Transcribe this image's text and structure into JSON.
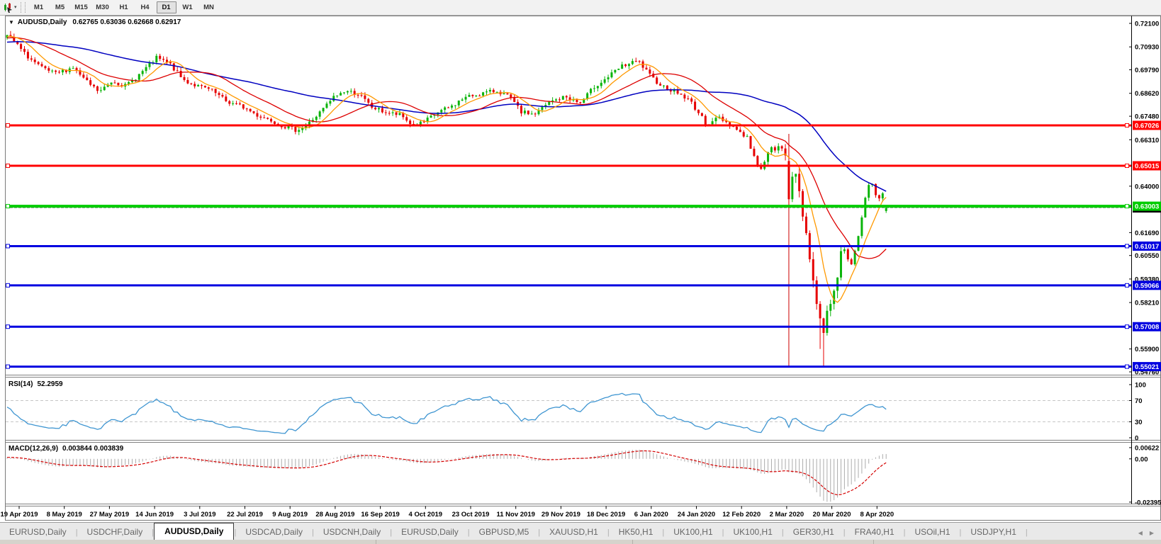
{
  "toolbar": {
    "timeframes": [
      "M1",
      "M5",
      "M15",
      "M30",
      "H1",
      "H4",
      "D1",
      "W1",
      "MN"
    ],
    "active_timeframe": "D1"
  },
  "chart_data": {
    "type": "candlestick",
    "symbol": "AUDUSD",
    "timeframe": "Daily",
    "title": "AUDUSD,Daily",
    "ohlc_text": "0.62765 0.63036 0.62668 0.62917",
    "open": 0.62765,
    "high": 0.63036,
    "low": 0.62668,
    "close": 0.62917,
    "current_bid": 0.62917,
    "y_axis_ticks": [
      0.721,
      0.7093,
      0.6979,
      0.6862,
      0.6748,
      0.6631,
      0.64,
      0.6169,
      0.6055,
      0.5938,
      0.5821,
      0.559,
      0.5476
    ],
    "y_axis_top": 0.721,
    "y_axis_bottom": 0.5476,
    "x_axis_dates": [
      "19 Apr 2019",
      "8 May 2019",
      "27 May 2019",
      "14 Jun 2019",
      "3 Jul 2019",
      "22 Jul 2019",
      "9 Aug 2019",
      "28 Aug 2019",
      "16 Sep 2019",
      "4 Oct 2019",
      "23 Oct 2019",
      "11 Nov 2019",
      "29 Nov 2019",
      "18 Dec 2019",
      "6 Jan 2020",
      "24 Jan 2020",
      "12 Feb 2020",
      "2 Mar 2020",
      "20 Mar 2020",
      "8 Apr 2020"
    ],
    "horizontal_lines": [
      {
        "price": 0.67026,
        "color": "#FF0000",
        "width": 3
      },
      {
        "price": 0.65015,
        "color": "#FF0000",
        "width": 3
      },
      {
        "price": 0.63003,
        "color": "#00CC00",
        "width": 4
      },
      {
        "price": 0.61017,
        "color": "#0000E0",
        "width": 3
      },
      {
        "price": 0.59066,
        "color": "#0000E0",
        "width": 3
      },
      {
        "price": 0.57008,
        "color": "#0000E0",
        "width": 3
      },
      {
        "price": 0.55021,
        "color": "#0000E0",
        "width": 3
      }
    ],
    "vertical_line": {
      "x_fraction": 0.888,
      "from_price": 0.666,
      "to_price": 0.5503,
      "color": "#CC0000"
    },
    "spike_low": {
      "x_fraction": 0.93,
      "price": 0.5506
    },
    "spike_high": {
      "x_fraction": 0.004,
      "price": 0.7172
    },
    "candle_up_color": "#0AB40A",
    "candle_down_color": "#E60000",
    "bid_line_color": "#A9A9A9",
    "moving_averages": [
      {
        "period": 8,
        "color": "#FF9900"
      },
      {
        "period": 21,
        "color": "#DD0000"
      },
      {
        "period": 55,
        "color": "#0000C0"
      }
    ],
    "price_path": [
      [
        0.0,
        0.7148
      ],
      [
        0.008,
        0.712
      ],
      [
        0.02,
        0.7058
      ],
      [
        0.038,
        0.699
      ],
      [
        0.055,
        0.6958
      ],
      [
        0.075,
        0.6992
      ],
      [
        0.09,
        0.692
      ],
      [
        0.105,
        0.6868
      ],
      [
        0.12,
        0.6925
      ],
      [
        0.135,
        0.6898
      ],
      [
        0.152,
        0.6962
      ],
      [
        0.17,
        0.7038
      ],
      [
        0.185,
        0.7008
      ],
      [
        0.2,
        0.693
      ],
      [
        0.216,
        0.6898
      ],
      [
        0.232,
        0.6878
      ],
      [
        0.25,
        0.682
      ],
      [
        0.268,
        0.6795
      ],
      [
        0.285,
        0.6752
      ],
      [
        0.3,
        0.673
      ],
      [
        0.315,
        0.6698
      ],
      [
        0.328,
        0.668
      ],
      [
        0.34,
        0.67
      ],
      [
        0.355,
        0.6762
      ],
      [
        0.372,
        0.6845
      ],
      [
        0.385,
        0.6875
      ],
      [
        0.4,
        0.6858
      ],
      [
        0.415,
        0.6792
      ],
      [
        0.43,
        0.6768
      ],
      [
        0.448,
        0.6752
      ],
      [
        0.462,
        0.67
      ],
      [
        0.475,
        0.672
      ],
      [
        0.49,
        0.6768
      ],
      [
        0.505,
        0.6795
      ],
      [
        0.52,
        0.684
      ],
      [
        0.54,
        0.6862
      ],
      [
        0.558,
        0.6875
      ],
      [
        0.572,
        0.684
      ],
      [
        0.585,
        0.6768
      ],
      [
        0.6,
        0.6758
      ],
      [
        0.618,
        0.682
      ],
      [
        0.635,
        0.6845
      ],
      [
        0.652,
        0.6812
      ],
      [
        0.668,
        0.6895
      ],
      [
        0.682,
        0.6938
      ],
      [
        0.7,
        0.6998
      ],
      [
        0.718,
        0.7022
      ],
      [
        0.733,
        0.694
      ],
      [
        0.748,
        0.6892
      ],
      [
        0.762,
        0.6868
      ],
      [
        0.778,
        0.682
      ],
      [
        0.795,
        0.671
      ],
      [
        0.81,
        0.6742
      ],
      [
        0.825,
        0.67
      ],
      [
        0.842,
        0.664
      ],
      [
        0.855,
        0.648
      ],
      [
        0.868,
        0.658
      ],
      [
        0.88,
        0.659
      ],
      [
        0.886,
        0.656
      ],
      [
        0.89,
        0.642
      ],
      [
        0.894,
        0.648
      ],
      [
        0.9,
        0.6395
      ],
      [
        0.906,
        0.624
      ],
      [
        0.912,
        0.6095
      ],
      [
        0.917,
        0.593
      ],
      [
        0.923,
        0.576
      ],
      [
        0.928,
        0.5672
      ],
      [
        0.934,
        0.579
      ],
      [
        0.94,
        0.5882
      ],
      [
        0.946,
        0.5985
      ],
      [
        0.951,
        0.612
      ],
      [
        0.956,
        0.6058
      ],
      [
        0.961,
        0.599
      ],
      [
        0.966,
        0.61
      ],
      [
        0.971,
        0.621
      ],
      [
        0.976,
        0.633
      ],
      [
        0.981,
        0.6432
      ],
      [
        0.986,
        0.6398
      ],
      [
        0.991,
        0.633
      ],
      [
        0.996,
        0.6358
      ],
      [
        1.0,
        0.6292
      ]
    ]
  },
  "rsi": {
    "label": "RSI(14)",
    "value": "52.2959",
    "period": 14,
    "levels": [
      70,
      30
    ],
    "axis_ticks": [
      100,
      70,
      30,
      0
    ],
    "line_color": "#3E95D1"
  },
  "macd": {
    "label": "MACD(12,26,9)",
    "values_text": "0.003844 0.003839",
    "fast": 12,
    "slow": 26,
    "signal": 9,
    "axis_ticks": [
      "0.00622",
      "0.00",
      "-0.02395"
    ],
    "axis_values": [
      0.00622,
      0.0,
      -0.02395
    ],
    "histogram_color": "#ABABAB",
    "signal_color": "#D40000"
  },
  "tabs": {
    "items": [
      "EURUSD,Daily",
      "USDCHF,Daily",
      "AUDUSD,Daily",
      "USDCAD,Daily",
      "USDCNH,Daily",
      "EURUSD,Daily",
      "GBPUSD,M5",
      "XAUUSD,H1",
      "HK50,H1",
      "UK100,H1",
      "UK100,H1",
      "GER30,H1",
      "FRA40,H1",
      "USOil,H1",
      "USDJPY,H1"
    ],
    "active_index": 2,
    "scroll_left_icon": "left-arrow",
    "scroll_right_icon": "right-arrow"
  }
}
